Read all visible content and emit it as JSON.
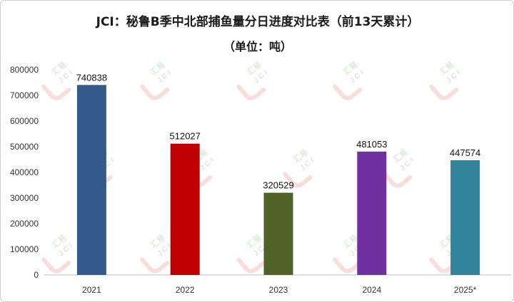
{
  "chart_data": {
    "type": "bar",
    "title": "JCI：秘鲁B季中北部捕鱼量分日进度对比表（前13天累计）",
    "subtitle": "（单位：吨）",
    "xlabel": "",
    "ylabel": "",
    "categories": [
      "2021",
      "2022",
      "2023",
      "2024",
      "2025*"
    ],
    "values": [
      740838,
      512027,
      320529,
      481053,
      447574
    ],
    "colors": [
      "#335A8A",
      "#C00000",
      "#4F6228",
      "#7030A0",
      "#31849B"
    ],
    "ylim": [
      0,
      800000
    ],
    "yticks": [
      0,
      100000,
      200000,
      300000,
      400000,
      500000,
      600000,
      700000,
      800000
    ],
    "grid": false,
    "legend": "none"
  },
  "watermark": {
    "text_cn": "汇易",
    "text_en": "JCI"
  }
}
